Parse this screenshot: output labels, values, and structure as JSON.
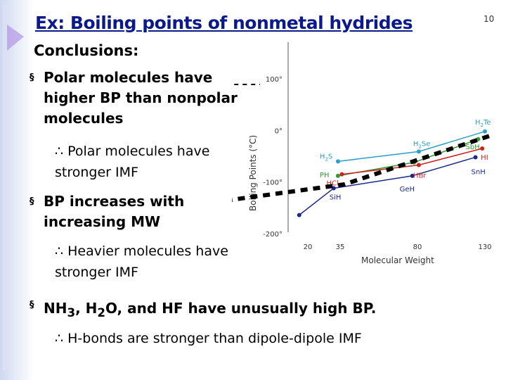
{
  "slide": {
    "title": "Ex: Boiling points of nonmetal hydrides",
    "number": "10",
    "subtitle": "Conclusions:",
    "bullet1": "Polar molecules have higher BP than nonpolar molecules",
    "sub1": "∴ Polar molecules have stronger IMF",
    "bullet2": "BP increases with increasing MW",
    "sub2": "∴ Heavier molecules have stronger IMF",
    "bullet3_parts": [
      "NH",
      "3",
      ", H",
      "2",
      "O, and HF have unusually high BP."
    ],
    "sub3": "∴  H-bonds are stronger than dipole-dipole IMF",
    "bullet_glyph": "§"
  },
  "chart_data": {
    "type": "line",
    "ylabel": "Boiling Points (°C)",
    "xlabel": "Molecular Weight",
    "x_ticks": [
      "20",
      "35",
      "80",
      "130"
    ],
    "y_ticks": [
      "100°",
      "0°",
      "-100°",
      "-200°"
    ],
    "ylim": [
      -200,
      100
    ],
    "colors": {
      "group14": "#1a2a8c",
      "group15": "#2e9a2e",
      "group16": "#2aa0c8",
      "group17": "#d02020"
    },
    "series": [
      {
        "group": "group14",
        "points": [
          {
            "x": 16,
            "y": -164,
            "label": ""
          },
          {
            "x": 32,
            "y": -112,
            "label": "SiH4"
          },
          {
            "x": 77,
            "y": -88,
            "label": "GeH4"
          },
          {
            "x": 123,
            "y": -52,
            "label": "SnH4"
          }
        ]
      },
      {
        "group": "group15",
        "points": [
          {
            "x": 34,
            "y": -88,
            "label": "PH3"
          },
          {
            "x": 78,
            "y": -62,
            "label": ""
          },
          {
            "x": 125,
            "y": -17,
            "label": "SbH3"
          }
        ]
      },
      {
        "group": "group16",
        "points": [
          {
            "x": 34,
            "y": -60,
            "label": "H2S"
          },
          {
            "x": 81,
            "y": -41,
            "label": "H2Se"
          },
          {
            "x": 130,
            "y": -2,
            "label": "H2Te"
          }
        ]
      },
      {
        "group": "group17",
        "points": [
          {
            "x": 36,
            "y": -85,
            "label": "HCl"
          },
          {
            "x": 81,
            "y": -67,
            "label": "HBr"
          },
          {
            "x": 128,
            "y": -35,
            "label": "HI"
          }
        ]
      }
    ],
    "overlay": "dashed black line from text to chart"
  }
}
